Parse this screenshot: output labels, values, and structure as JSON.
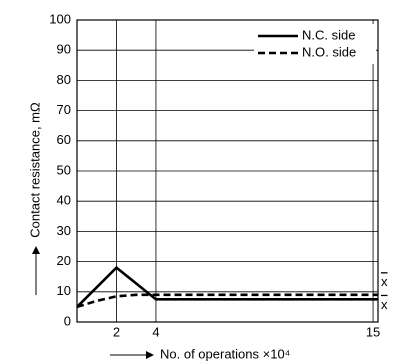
{
  "chart_data": {
    "type": "line",
    "x": [
      0,
      1,
      2,
      3,
      4,
      15.25
    ],
    "series": [
      {
        "name": "N.C. side",
        "color": "#000000",
        "dash": "solid",
        "values": [
          5,
          11.5,
          18,
          12.75,
          7.5,
          7.5
        ]
      },
      {
        "name": "N.O. side",
        "color": "#000000",
        "dash": "dashed",
        "values": [
          5,
          7,
          8.5,
          9,
          9,
          9
        ]
      }
    ],
    "xlim": [
      0,
      15.25
    ],
    "xticks": [
      2,
      4,
      15
    ],
    "ylim": [
      0,
      100
    ],
    "yticks": [
      0,
      10,
      20,
      30,
      40,
      50,
      60,
      70,
      80,
      90,
      100
    ],
    "grid": true,
    "legend": "upper right",
    "xlabel": "No. of operations ×10⁴",
    "ylabel": "Contact resistance, mΩ",
    "annotations": [
      "x",
      "x"
    ]
  }
}
